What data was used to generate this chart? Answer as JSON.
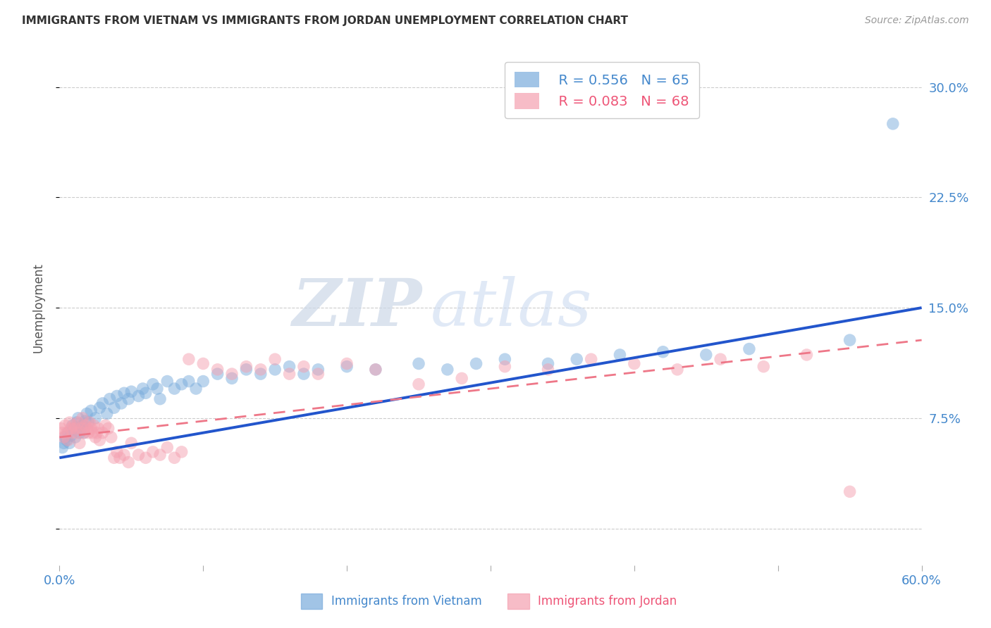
{
  "title": "IMMIGRANTS FROM VIETNAM VS IMMIGRANTS FROM JORDAN UNEMPLOYMENT CORRELATION CHART",
  "source": "Source: ZipAtlas.com",
  "ylabel": "Unemployment",
  "xlim": [
    0.0,
    0.6
  ],
  "ylim": [
    -0.025,
    0.325
  ],
  "x_ticks": [
    0.0,
    0.1,
    0.2,
    0.3,
    0.4,
    0.5,
    0.6
  ],
  "y_ticks": [
    0.0,
    0.075,
    0.15,
    0.225,
    0.3
  ],
  "y_tick_labels": [
    "",
    "7.5%",
    "15.0%",
    "22.5%",
    "30.0%"
  ],
  "grid_color": "#cccccc",
  "background_color": "#ffffff",
  "vietnam_color": "#7aacdc",
  "jordan_color": "#f5a0b0",
  "vietnam_line_color": "#2255cc",
  "jordan_line_color": "#ee7788",
  "vietnam_R": 0.556,
  "vietnam_N": 65,
  "jordan_R": 0.083,
  "jordan_N": 68,
  "watermark_zip": "ZIP",
  "watermark_atlas": "atlas",
  "vietnam_line_x0": 0.0,
  "vietnam_line_y0": 0.048,
  "vietnam_line_x1": 0.6,
  "vietnam_line_y1": 0.15,
  "jordan_line_x0": 0.0,
  "jordan_line_y0": 0.062,
  "jordan_line_x1": 0.6,
  "jordan_line_y1": 0.128,
  "vietnam_x": [
    0.002,
    0.003,
    0.004,
    0.005,
    0.006,
    0.007,
    0.008,
    0.009,
    0.01,
    0.011,
    0.012,
    0.013,
    0.014,
    0.015,
    0.016,
    0.017,
    0.018,
    0.019,
    0.02,
    0.022,
    0.025,
    0.028,
    0.03,
    0.033,
    0.035,
    0.038,
    0.04,
    0.043,
    0.045,
    0.048,
    0.05,
    0.055,
    0.058,
    0.06,
    0.065,
    0.068,
    0.07,
    0.075,
    0.08,
    0.085,
    0.09,
    0.095,
    0.1,
    0.11,
    0.12,
    0.13,
    0.14,
    0.15,
    0.16,
    0.17,
    0.18,
    0.2,
    0.22,
    0.25,
    0.27,
    0.29,
    0.31,
    0.34,
    0.36,
    0.39,
    0.42,
    0.45,
    0.48,
    0.55,
    0.58
  ],
  "vietnam_y": [
    0.055,
    0.058,
    0.062,
    0.06,
    0.065,
    0.058,
    0.063,
    0.07,
    0.068,
    0.062,
    0.072,
    0.075,
    0.065,
    0.068,
    0.07,
    0.065,
    0.073,
    0.078,
    0.072,
    0.08,
    0.075,
    0.082,
    0.085,
    0.078,
    0.088,
    0.082,
    0.09,
    0.085,
    0.092,
    0.088,
    0.093,
    0.09,
    0.095,
    0.092,
    0.098,
    0.095,
    0.088,
    0.1,
    0.095,
    0.098,
    0.1,
    0.095,
    0.1,
    0.105,
    0.102,
    0.108,
    0.105,
    0.108,
    0.11,
    0.105,
    0.108,
    0.11,
    0.108,
    0.112,
    0.108,
    0.112,
    0.115,
    0.112,
    0.115,
    0.118,
    0.12,
    0.118,
    0.122,
    0.128,
    0.275
  ],
  "jordan_x": [
    0.001,
    0.002,
    0.003,
    0.004,
    0.005,
    0.006,
    0.007,
    0.008,
    0.009,
    0.01,
    0.011,
    0.012,
    0.013,
    0.014,
    0.015,
    0.016,
    0.017,
    0.018,
    0.019,
    0.02,
    0.021,
    0.022,
    0.023,
    0.024,
    0.025,
    0.026,
    0.027,
    0.028,
    0.03,
    0.032,
    0.034,
    0.036,
    0.038,
    0.04,
    0.042,
    0.045,
    0.048,
    0.05,
    0.055,
    0.06,
    0.065,
    0.07,
    0.075,
    0.08,
    0.085,
    0.09,
    0.1,
    0.11,
    0.12,
    0.13,
    0.14,
    0.15,
    0.16,
    0.17,
    0.18,
    0.2,
    0.22,
    0.25,
    0.28,
    0.31,
    0.34,
    0.37,
    0.4,
    0.43,
    0.46,
    0.49,
    0.52,
    0.55
  ],
  "jordan_y": [
    0.068,
    0.065,
    0.062,
    0.07,
    0.065,
    0.06,
    0.072,
    0.068,
    0.065,
    0.07,
    0.068,
    0.065,
    0.072,
    0.058,
    0.068,
    0.075,
    0.065,
    0.07,
    0.068,
    0.065,
    0.072,
    0.068,
    0.065,
    0.07,
    0.062,
    0.065,
    0.068,
    0.06,
    0.065,
    0.07,
    0.068,
    0.062,
    0.048,
    0.052,
    0.048,
    0.05,
    0.045,
    0.058,
    0.05,
    0.048,
    0.052,
    0.05,
    0.055,
    0.048,
    0.052,
    0.115,
    0.112,
    0.108,
    0.105,
    0.11,
    0.108,
    0.115,
    0.105,
    0.11,
    0.105,
    0.112,
    0.108,
    0.098,
    0.102,
    0.11,
    0.108,
    0.115,
    0.112,
    0.108,
    0.115,
    0.11,
    0.118,
    0.025
  ]
}
